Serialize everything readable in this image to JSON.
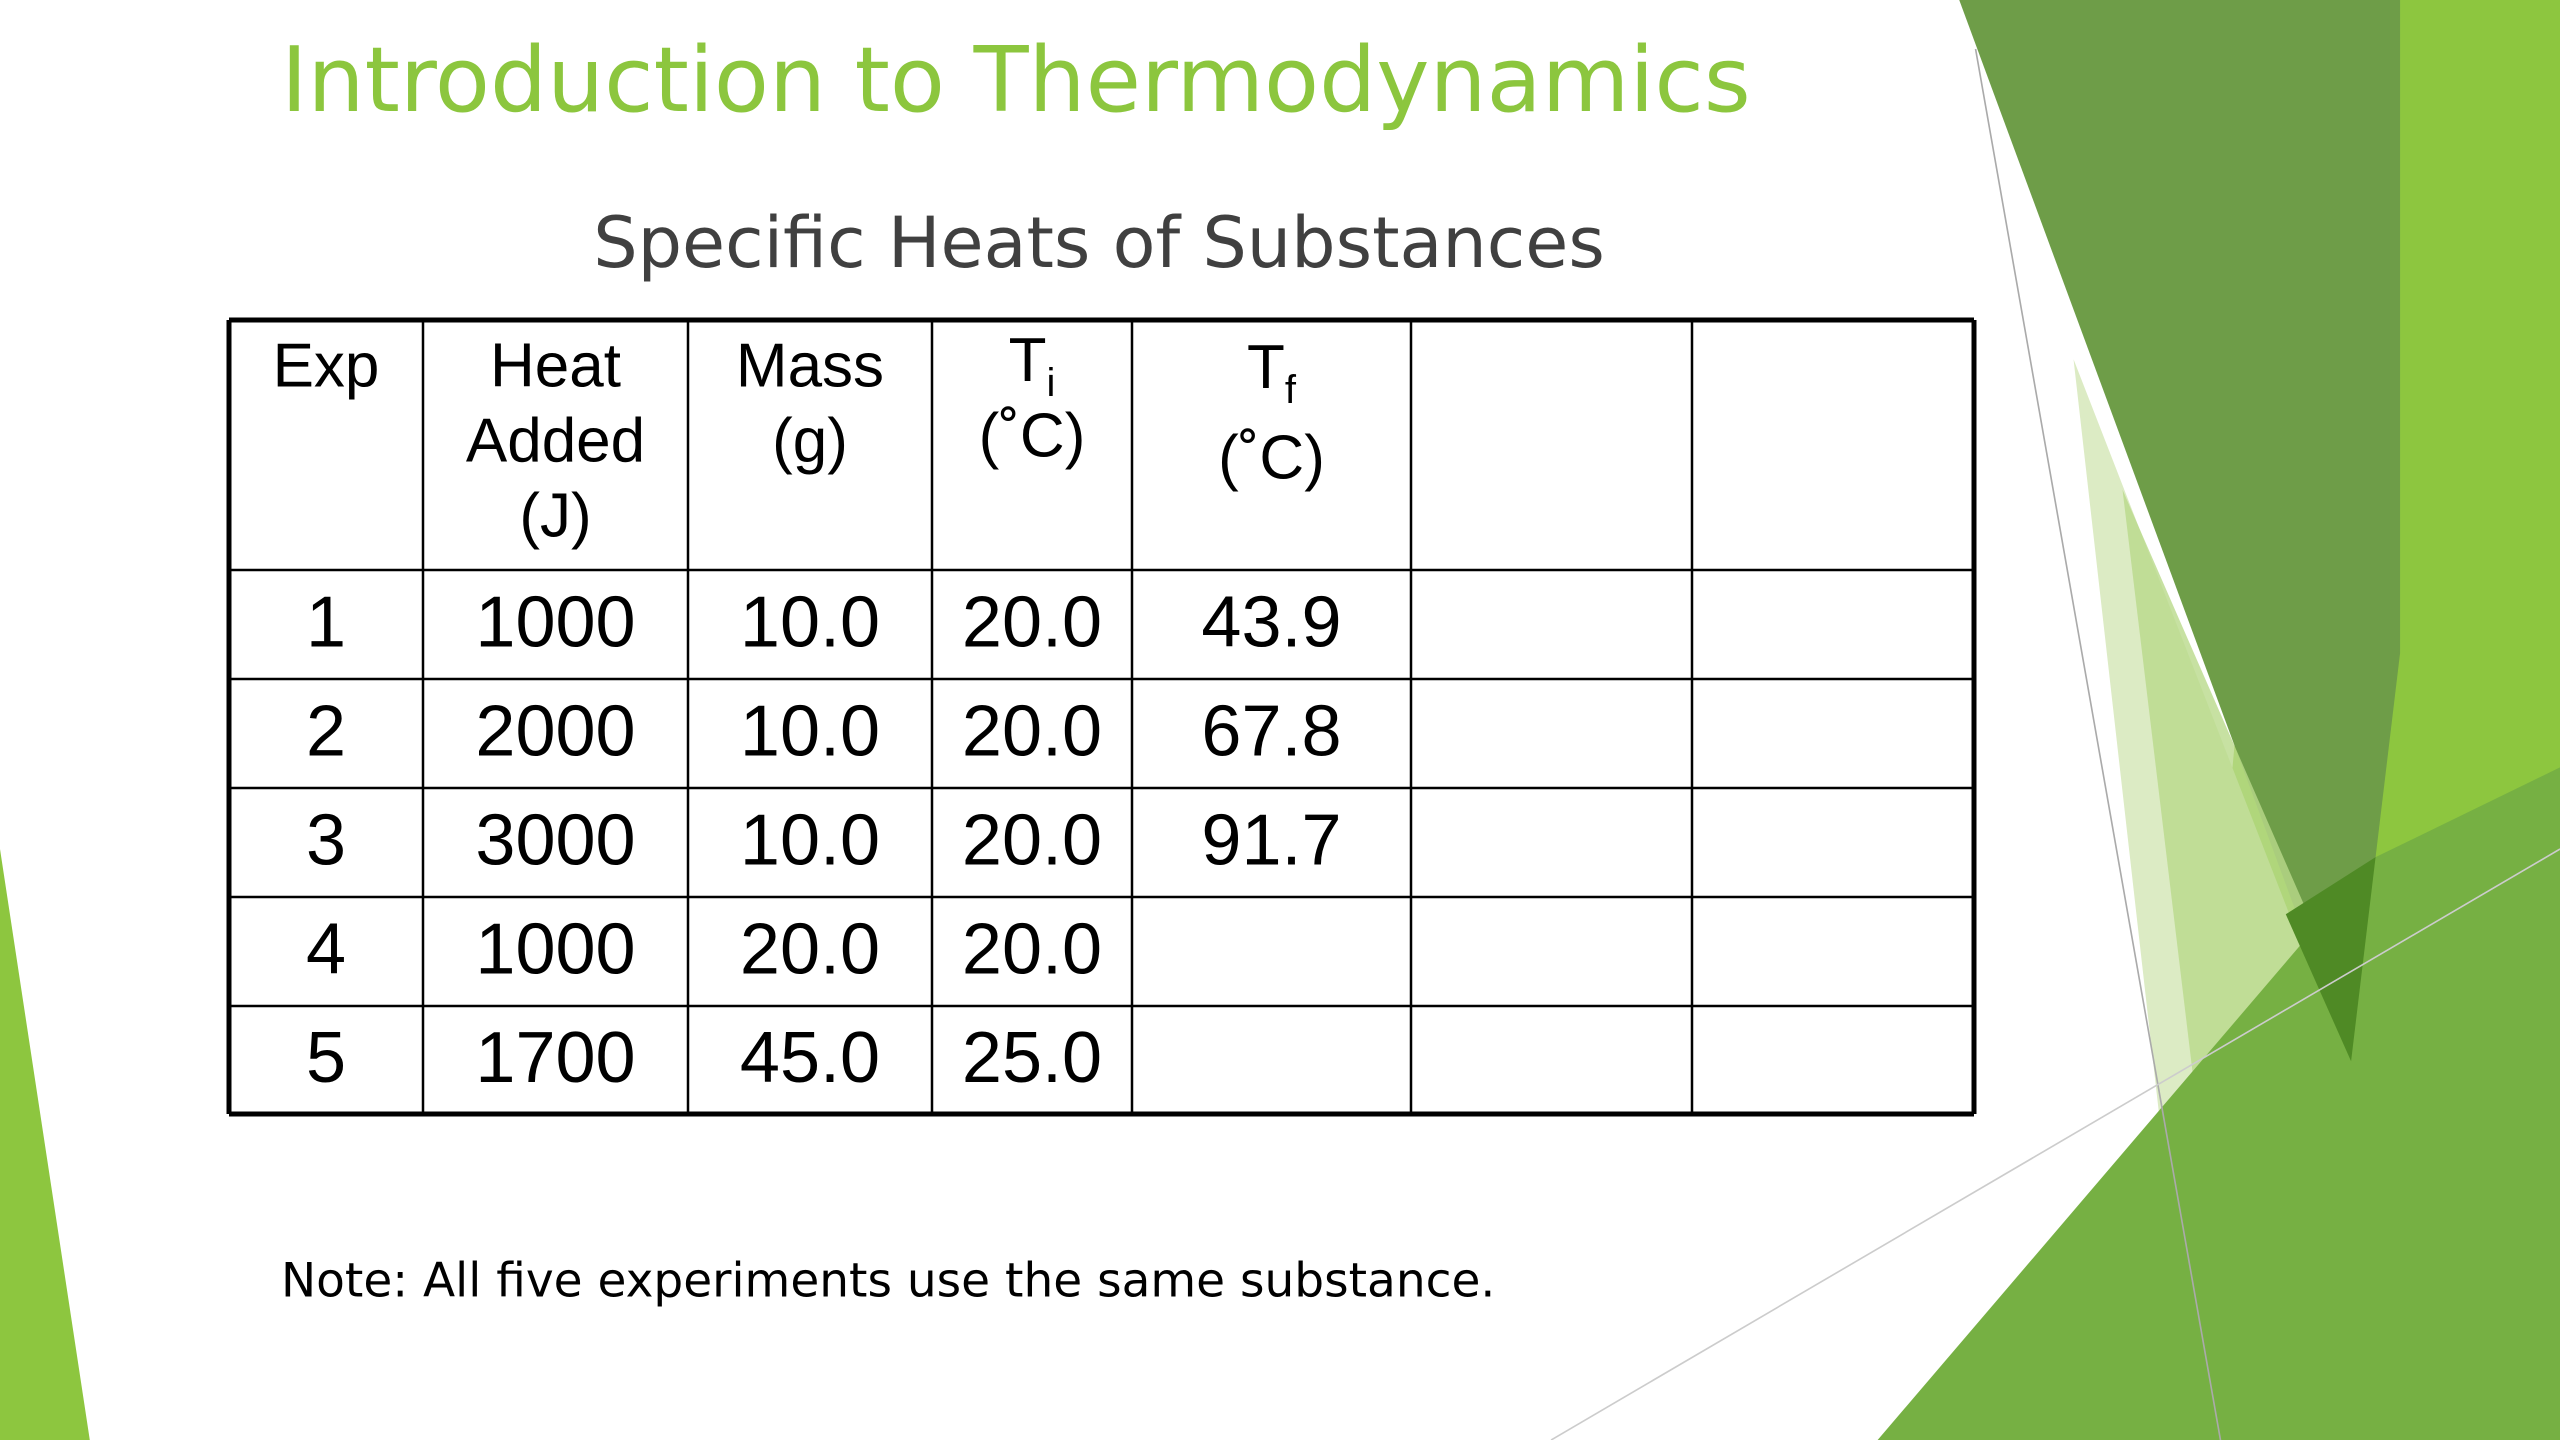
{
  "header": {
    "title": "Introduction to Thermodynamics"
  },
  "table": {
    "title": "Specific Heats of Substances",
    "header": [
      {
        "lines": [
          "Exp"
        ]
      },
      {
        "lines": [
          "Heat",
          "Added",
          "(J)"
        ]
      },
      {
        "lines": [
          "Mass",
          "(g)"
        ]
      },
      {
        "lines": [
          "T",
          "(˚C)"
        ],
        "subscript": "i"
      },
      {
        "lines": [
          "T",
          "(˚C)"
        ],
        "subscript": "f"
      }
    ],
    "rows": [
      [
        "1",
        "1000",
        "10.0",
        "20.0",
        "43.9"
      ],
      [
        "2",
        "2000",
        "10.0",
        "20.0",
        "67.8"
      ],
      [
        "3",
        "3000",
        "10.0",
        "20.0",
        "91.7"
      ],
      [
        "4",
        "1000",
        "20.0",
        "20.0"
      ],
      [
        "5",
        "1700",
        "45.0",
        "25.0"
      ]
    ]
  },
  "note": "Note: All five experiments use the same substance."
}
